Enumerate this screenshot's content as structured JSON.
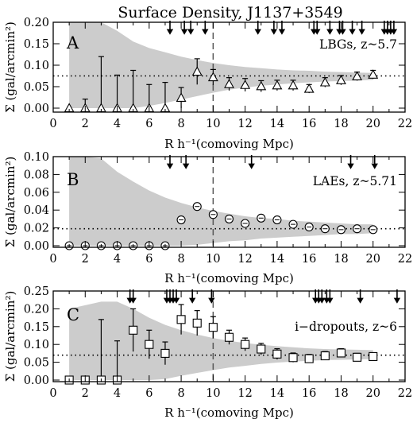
{
  "title": "Surface Density, J1137+3549",
  "x_axis_label": "R h⁻¹(comoving Mpc)",
  "y_axis_label": "Σ (gal/arcmin²)",
  "colors": {
    "envelope": "#cccccc",
    "marks": "#000000",
    "background": "#ffffff"
  },
  "chart_data": [
    {
      "type": "scatter",
      "panel": "A",
      "label": "LBGs, z~5.7",
      "marker": "triangle",
      "xlim": [
        0,
        22
      ],
      "ylim": [
        0,
        0.2
      ],
      "x_ticks": [
        0,
        2,
        4,
        6,
        8,
        10,
        12,
        14,
        16,
        18,
        20,
        22
      ],
      "y_ticks": [
        0.0,
        0.05,
        0.1,
        0.15,
        0.2
      ],
      "y_tick_labels": [
        "0.00",
        "0.05",
        "0.10",
        "0.15",
        "0.20"
      ],
      "mean_line": 0.075,
      "vline_x": 10,
      "points": [
        {
          "x": 1,
          "y": 0.0,
          "err": 0
        },
        {
          "x": 2,
          "y": 0.0,
          "err": 0.021
        },
        {
          "x": 3,
          "y": 0.0,
          "err": 0.12
        },
        {
          "x": 4,
          "y": 0.0,
          "err": 0.077
        },
        {
          "x": 5,
          "y": 0.0,
          "err": 0.088
        },
        {
          "x": 6,
          "y": 0.0,
          "err": 0.055
        },
        {
          "x": 7,
          "y": 0.0,
          "err": 0.06
        },
        {
          "x": 8,
          "y": 0.024,
          "err": 0.024
        },
        {
          "x": 9,
          "y": 0.085,
          "err": 0.03
        },
        {
          "x": 10,
          "y": 0.072,
          "err": 0.018
        },
        {
          "x": 11,
          "y": 0.056,
          "err": 0.015
        },
        {
          "x": 12,
          "y": 0.054,
          "err": 0.015
        },
        {
          "x": 13,
          "y": 0.051,
          "err": 0.013
        },
        {
          "x": 14,
          "y": 0.053,
          "err": 0.012
        },
        {
          "x": 15,
          "y": 0.053,
          "err": 0.012
        },
        {
          "x": 16,
          "y": 0.045,
          "err": 0.01
        },
        {
          "x": 17,
          "y": 0.06,
          "err": 0.011
        },
        {
          "x": 18,
          "y": 0.065,
          "err": 0.011
        },
        {
          "x": 19,
          "y": 0.074,
          "err": 0.01
        },
        {
          "x": 20,
          "y": 0.078,
          "err": 0.01
        }
      ],
      "envelope": {
        "x": [
          1,
          2,
          3,
          4,
          5,
          6,
          7,
          8,
          9,
          10,
          11,
          12,
          13,
          14,
          15,
          16,
          17,
          18,
          19,
          20
        ],
        "upper": [
          0.21,
          0.21,
          0.2,
          0.18,
          0.155,
          0.14,
          0.13,
          0.12,
          0.112,
          0.105,
          0.1,
          0.096,
          0.093,
          0.09,
          0.088,
          0.087,
          0.085,
          0.084,
          0.083,
          0.082
        ],
        "lower": [
          0.0,
          0.0,
          0.0,
          0.0,
          0.0,
          0.005,
          0.012,
          0.02,
          0.028,
          0.036,
          0.043,
          0.048,
          0.052,
          0.055,
          0.058,
          0.06,
          0.062,
          0.063,
          0.064,
          0.066
        ]
      },
      "arrows_x": [
        7.3,
        8.2,
        8.6,
        9.5,
        12.8,
        13.8,
        14.3,
        16.3,
        16.5,
        17.3,
        17.9,
        18.1,
        18.7,
        19.3,
        20.7,
        20.9,
        21.1,
        21.3
      ]
    },
    {
      "type": "scatter",
      "panel": "B",
      "label": "LAEs, z~5.71",
      "marker": "circle",
      "xlim": [
        0,
        22
      ],
      "ylim": [
        0,
        0.1
      ],
      "x_ticks": [
        0,
        2,
        4,
        6,
        8,
        10,
        12,
        14,
        16,
        18,
        20,
        22
      ],
      "y_ticks": [
        0.0,
        0.02,
        0.04,
        0.06,
        0.08,
        0.1
      ],
      "y_tick_labels": [
        "0.00",
        "0.02",
        "0.04",
        "0.06",
        "0.08",
        "0.10"
      ],
      "mean_line": 0.019,
      "vline_x": 10,
      "points": [
        {
          "x": 1,
          "y": 0.0
        },
        {
          "x": 2,
          "y": 0.0
        },
        {
          "x": 3,
          "y": 0.0
        },
        {
          "x": 4,
          "y": 0.0
        },
        {
          "x": 5,
          "y": 0.0
        },
        {
          "x": 6,
          "y": 0.0
        },
        {
          "x": 7,
          "y": 0.0
        },
        {
          "x": 8,
          "y": 0.029
        },
        {
          "x": 9,
          "y": 0.044
        },
        {
          "x": 10,
          "y": 0.035
        },
        {
          "x": 11,
          "y": 0.03
        },
        {
          "x": 12,
          "y": 0.025
        },
        {
          "x": 13,
          "y": 0.031
        },
        {
          "x": 14,
          "y": 0.029
        },
        {
          "x": 15,
          "y": 0.024
        },
        {
          "x": 16,
          "y": 0.021
        },
        {
          "x": 17,
          "y": 0.019
        },
        {
          "x": 18,
          "y": 0.018
        },
        {
          "x": 19,
          "y": 0.019
        },
        {
          "x": 20,
          "y": 0.018
        }
      ],
      "envelope": {
        "x": [
          1,
          2,
          3,
          4,
          5,
          6,
          7,
          8,
          9,
          10,
          11,
          12,
          13,
          14,
          15,
          16,
          17,
          18,
          19,
          20
        ],
        "upper": [
          0.1,
          0.1,
          0.098,
          0.083,
          0.072,
          0.062,
          0.054,
          0.048,
          0.043,
          0.039,
          0.036,
          0.033,
          0.031,
          0.03,
          0.028,
          0.027,
          0.026,
          0.025,
          0.024,
          0.024
        ],
        "lower": [
          0.0,
          0.0,
          0.0,
          0.0,
          0.0,
          0.0,
          0.0,
          0.0,
          0.001,
          0.003,
          0.005,
          0.006,
          0.008,
          0.009,
          0.01,
          0.011,
          0.012,
          0.013,
          0.013,
          0.014
        ]
      },
      "arrows_x": [
        7.3,
        8.3,
        12.4,
        18.6,
        20.1
      ]
    },
    {
      "type": "scatter",
      "panel": "C",
      "label": "i−dropouts, z~6",
      "marker": "square",
      "xlim": [
        0,
        22
      ],
      "ylim": [
        0,
        0.25
      ],
      "x_ticks": [
        0,
        2,
        4,
        6,
        8,
        10,
        12,
        14,
        16,
        18,
        20,
        22
      ],
      "y_ticks": [
        0.0,
        0.05,
        0.1,
        0.15,
        0.2,
        0.25
      ],
      "y_tick_labels": [
        "0.00",
        "0.05",
        "0.10",
        "0.15",
        "0.20",
        "0.25"
      ],
      "mean_line": 0.07,
      "vline_x": 10,
      "points": [
        {
          "x": 1,
          "y": 0.0,
          "err": 0
        },
        {
          "x": 2,
          "y": 0.0,
          "err": 0
        },
        {
          "x": 3,
          "y": 0.0,
          "err": 0.17
        },
        {
          "x": 4,
          "y": 0.0,
          "err": 0.11
        },
        {
          "x": 5,
          "y": 0.14,
          "err": 0.06
        },
        {
          "x": 6,
          "y": 0.1,
          "err": 0.04
        },
        {
          "x": 7,
          "y": 0.075,
          "err": 0.032
        },
        {
          "x": 8,
          "y": 0.17,
          "err": 0.042
        },
        {
          "x": 9,
          "y": 0.16,
          "err": 0.035
        },
        {
          "x": 10,
          "y": 0.148,
          "err": 0.03
        },
        {
          "x": 11,
          "y": 0.12,
          "err": 0.02
        },
        {
          "x": 12,
          "y": 0.1,
          "err": 0.018
        },
        {
          "x": 13,
          "y": 0.087,
          "err": 0.016
        },
        {
          "x": 14,
          "y": 0.073,
          "err": 0.015
        },
        {
          "x": 15,
          "y": 0.063,
          "err": 0.013
        },
        {
          "x": 16,
          "y": 0.06,
          "err": 0.012
        },
        {
          "x": 17,
          "y": 0.068,
          "err": 0.012
        },
        {
          "x": 18,
          "y": 0.076,
          "err": 0.012
        },
        {
          "x": 19,
          "y": 0.064,
          "err": 0.011
        },
        {
          "x": 20,
          "y": 0.066,
          "err": 0.01
        }
      ],
      "envelope": {
        "x": [
          1,
          2,
          3,
          4,
          5,
          6,
          7,
          8,
          9,
          10,
          11,
          12,
          13,
          14,
          15,
          16,
          17,
          18,
          19,
          20
        ],
        "upper": [
          0.2,
          0.21,
          0.22,
          0.22,
          0.2,
          0.175,
          0.155,
          0.14,
          0.128,
          0.118,
          0.11,
          0.104,
          0.099,
          0.095,
          0.092,
          0.089,
          0.087,
          0.086,
          0.085,
          0.084
        ],
        "lower": [
          0.0,
          0.0,
          0.0,
          0.0,
          0.0,
          0.0,
          0.003,
          0.012,
          0.02,
          0.028,
          0.035,
          0.04,
          0.045,
          0.049,
          0.052,
          0.054,
          0.056,
          0.057,
          0.058,
          0.059
        ]
      },
      "arrows_x": [
        4.8,
        5.0,
        7.1,
        7.3,
        7.5,
        7.7,
        8.7,
        9.9,
        16.4,
        16.6,
        16.8,
        17.1,
        17.3,
        19.2,
        21.5
      ]
    }
  ]
}
